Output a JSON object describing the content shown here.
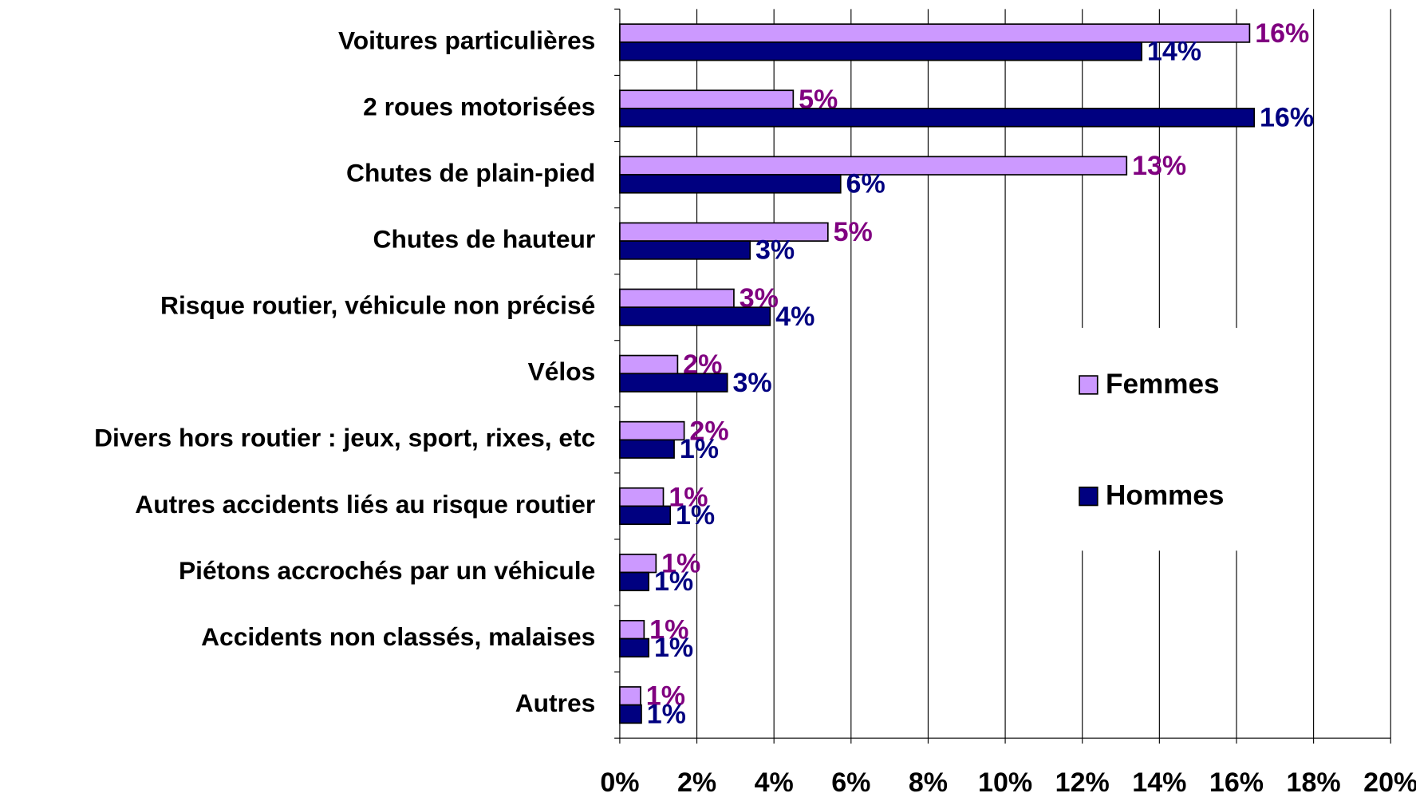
{
  "chart_data": {
    "type": "barh",
    "categories": [
      "Voitures particulières",
      "2 roues motorisées",
      "Chutes de plain-pied",
      "Chutes de hauteur",
      "Risque routier, véhicule non précisé",
      "Vélos",
      "Divers hors routier : jeux, sport, rixes, etc",
      "Autres accidents liés au risque routier",
      "Piétons accrochés par un véhicule",
      "Accidents non classés, malaises",
      "Autres"
    ],
    "series": [
      {
        "name": "Femmes",
        "color": "#cc99ff",
        "label_color": "#800080",
        "values": [
          16.34,
          4.5,
          13.15,
          5.4,
          2.96,
          1.5,
          1.67,
          1.13,
          0.94,
          0.63,
          0.54
        ],
        "value_labels": [
          "16%",
          "5%",
          "13%",
          "5%",
          "3%",
          "2%",
          "2%",
          "1%",
          "1%",
          "1%",
          "1%"
        ]
      },
      {
        "name": "Hommes",
        "color": "#000080",
        "label_color": "#000080",
        "values": [
          13.54,
          16.46,
          5.73,
          3.38,
          3.9,
          2.79,
          1.41,
          1.31,
          0.75,
          0.75,
          0.56
        ],
        "value_labels": [
          "14%",
          "16%",
          "6%",
          "3%",
          "4%",
          "3%",
          "1%",
          "1%",
          "1%",
          "1%",
          "1%"
        ]
      }
    ],
    "xlim": [
      0,
      20
    ],
    "xticks": [
      {
        "value": 0,
        "label": "0%"
      },
      {
        "value": 2,
        "label": "2%"
      },
      {
        "value": 4,
        "label": "4%"
      },
      {
        "value": 6,
        "label": "6%"
      },
      {
        "value": 8,
        "label": "8%"
      },
      {
        "value": 10,
        "label": "10%"
      },
      {
        "value": 12,
        "label": "12%"
      },
      {
        "value": 14,
        "label": "14%"
      },
      {
        "value": 16,
        "label": "16%"
      },
      {
        "value": 18,
        "label": "18%"
      },
      {
        "value": 20,
        "label": "20%"
      }
    ],
    "grid": true,
    "legend": "right"
  }
}
